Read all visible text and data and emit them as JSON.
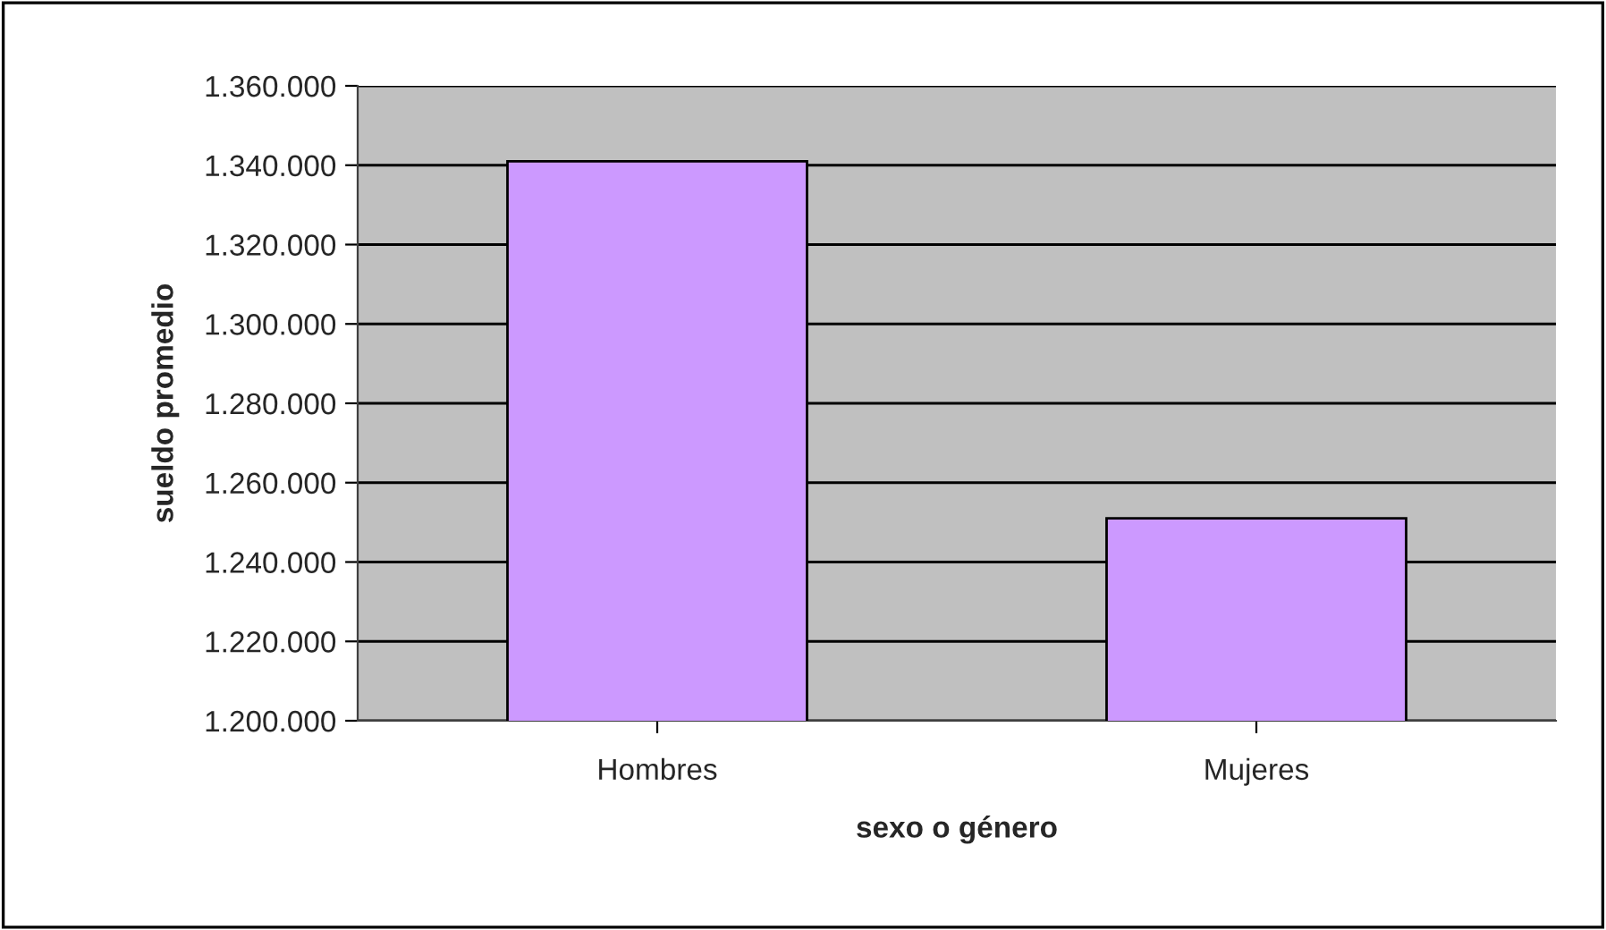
{
  "chart_data": {
    "type": "bar",
    "xlabel": "sexo o género",
    "ylabel": "sueldo promedio",
    "categories": [
      "Hombres",
      "Mujeres"
    ],
    "values": [
      1341000,
      1251000
    ],
    "color": "#cc99ff",
    "ylim": [
      1200000,
      1360000
    ],
    "yticks": [
      {
        "value": 1200000,
        "label": "1.200.000"
      },
      {
        "value": 1220000,
        "label": "1.220.000"
      },
      {
        "value": 1240000,
        "label": "1.240.000"
      },
      {
        "value": 1260000,
        "label": "1.260.000"
      },
      {
        "value": 1280000,
        "label": "1.280.000"
      },
      {
        "value": 1300000,
        "label": "1.300.000"
      },
      {
        "value": 1320000,
        "label": "1.320.000"
      },
      {
        "value": 1340000,
        "label": "1.340.000"
      },
      {
        "value": 1360000,
        "label": "1.360.000"
      }
    ],
    "grid": "y"
  }
}
